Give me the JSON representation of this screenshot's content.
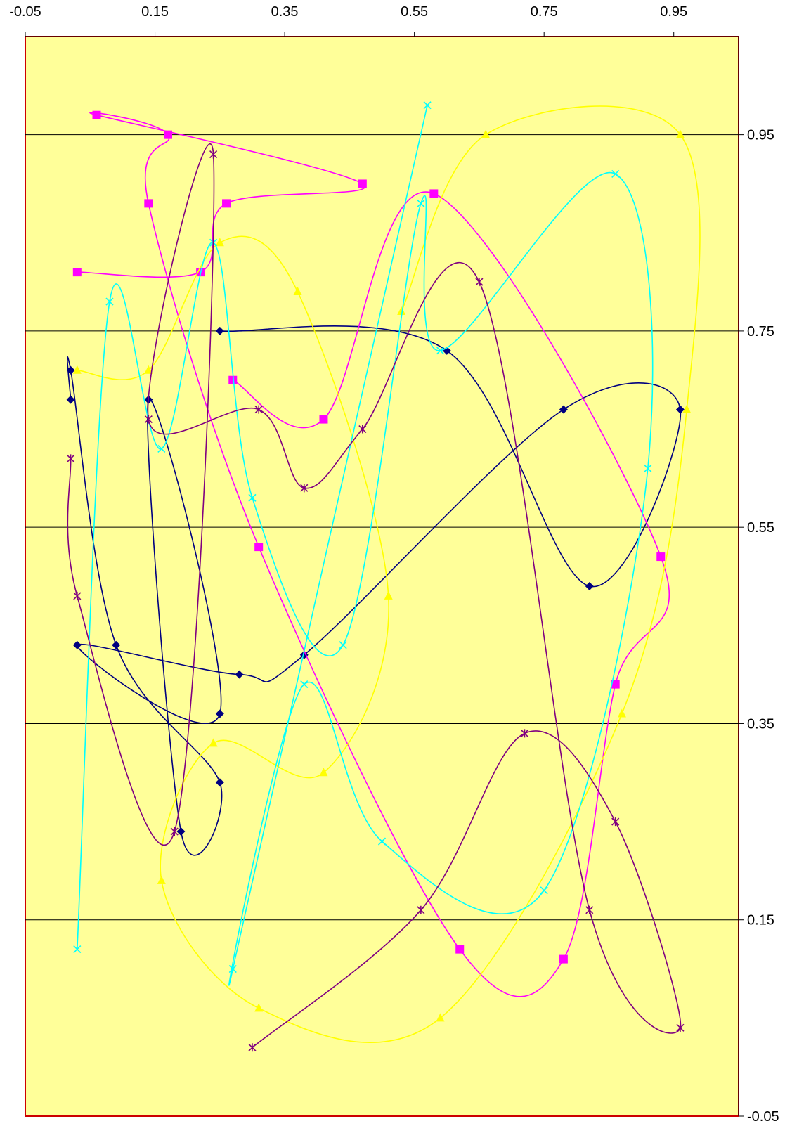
{
  "chart_data": {
    "type": "scatter",
    "title": "",
    "xlabel": "",
    "ylabel": "",
    "x_axis_position": "top",
    "y_axis_position": "right",
    "xlim": [
      -0.05,
      1.05
    ],
    "ylim": [
      -0.05,
      1.05
    ],
    "x_ticks": [
      "-0.05",
      "0.15",
      "0.35",
      "0.55",
      "0.75",
      "0.95"
    ],
    "x_tick_values": [
      -0.05,
      0.15,
      0.35,
      0.55,
      0.75,
      0.95
    ],
    "y_ticks": [
      "0.95",
      "0.75",
      "0.55",
      "0.35",
      "0.15",
      "-0.05"
    ],
    "y_tick_values": [
      0.95,
      0.75,
      0.55,
      0.35,
      0.15,
      -0.05
    ],
    "grid": "horizontal major gridlines",
    "legend": "none",
    "plot_background": "#FFFF99",
    "plot_border": "#CC0000",
    "smoothed_lines": true,
    "series": [
      {
        "marker": "diamond",
        "color": "#000080",
        "points": [
          [
            0.02,
            0.68
          ],
          [
            0.02,
            0.71
          ],
          [
            0.09,
            0.43
          ],
          [
            0.25,
            0.29
          ],
          [
            0.19,
            0.24
          ],
          [
            0.14,
            0.68
          ],
          [
            0.25,
            0.36
          ],
          [
            0.03,
            0.43
          ],
          [
            0.28,
            0.4
          ],
          [
            0.38,
            0.42
          ],
          [
            0.78,
            0.67
          ],
          [
            0.96,
            0.67
          ],
          [
            0.82,
            0.49
          ],
          [
            0.6,
            0.73
          ],
          [
            0.25,
            0.75
          ]
        ]
      },
      {
        "marker": "square",
        "color": "#FF00FF",
        "points": [
          [
            0.03,
            0.81
          ],
          [
            0.22,
            0.81
          ],
          [
            0.26,
            0.88
          ],
          [
            0.47,
            0.9
          ],
          [
            0.06,
            0.97
          ],
          [
            0.17,
            0.95
          ],
          [
            0.14,
            0.88
          ],
          [
            0.31,
            0.53
          ],
          [
            0.62,
            0.12
          ],
          [
            0.78,
            0.11
          ],
          [
            0.86,
            0.39
          ],
          [
            0.93,
            0.52
          ],
          [
            0.58,
            0.89
          ],
          [
            0.41,
            0.66
          ],
          [
            0.27,
            0.7
          ]
        ]
      },
      {
        "marker": "triangle",
        "color": "#FFFF00",
        "points": [
          [
            0.03,
            0.71
          ],
          [
            0.14,
            0.71
          ],
          [
            0.25,
            0.84
          ],
          [
            0.37,
            0.79
          ],
          [
            0.51,
            0.48
          ],
          [
            0.41,
            0.3
          ],
          [
            0.24,
            0.33
          ],
          [
            0.16,
            0.19
          ],
          [
            0.31,
            0.06
          ],
          [
            0.59,
            0.05
          ],
          [
            0.87,
            0.36
          ],
          [
            0.97,
            0.67
          ],
          [
            0.96,
            0.95
          ],
          [
            0.66,
            0.95
          ],
          [
            0.53,
            0.77
          ]
        ]
      },
      {
        "marker": "x",
        "color": "#00FFFF",
        "points": [
          [
            0.03,
            0.12
          ],
          [
            0.08,
            0.78
          ],
          [
            0.16,
            0.63
          ],
          [
            0.24,
            0.84
          ],
          [
            0.3,
            0.58
          ],
          [
            0.44,
            0.43
          ],
          [
            0.56,
            0.88
          ],
          [
            0.59,
            0.73
          ],
          [
            0.86,
            0.91
          ],
          [
            0.91,
            0.61
          ],
          [
            0.75,
            0.18
          ],
          [
            0.5,
            0.23
          ],
          [
            0.38,
            0.39
          ],
          [
            0.27,
            0.1
          ],
          [
            0.57,
            0.98
          ]
        ]
      },
      {
        "marker": "star",
        "color": "#800080",
        "points": [
          [
            0.02,
            0.62
          ],
          [
            0.03,
            0.48
          ],
          [
            0.18,
            0.24
          ],
          [
            0.24,
            0.93
          ],
          [
            0.14,
            0.66
          ],
          [
            0.31,
            0.67
          ],
          [
            0.38,
            0.59
          ],
          [
            0.47,
            0.65
          ],
          [
            0.65,
            0.8
          ],
          [
            0.82,
            0.16
          ],
          [
            0.96,
            0.04
          ],
          [
            0.86,
            0.25
          ],
          [
            0.72,
            0.34
          ],
          [
            0.56,
            0.16
          ],
          [
            0.3,
            0.02
          ]
        ]
      }
    ]
  }
}
